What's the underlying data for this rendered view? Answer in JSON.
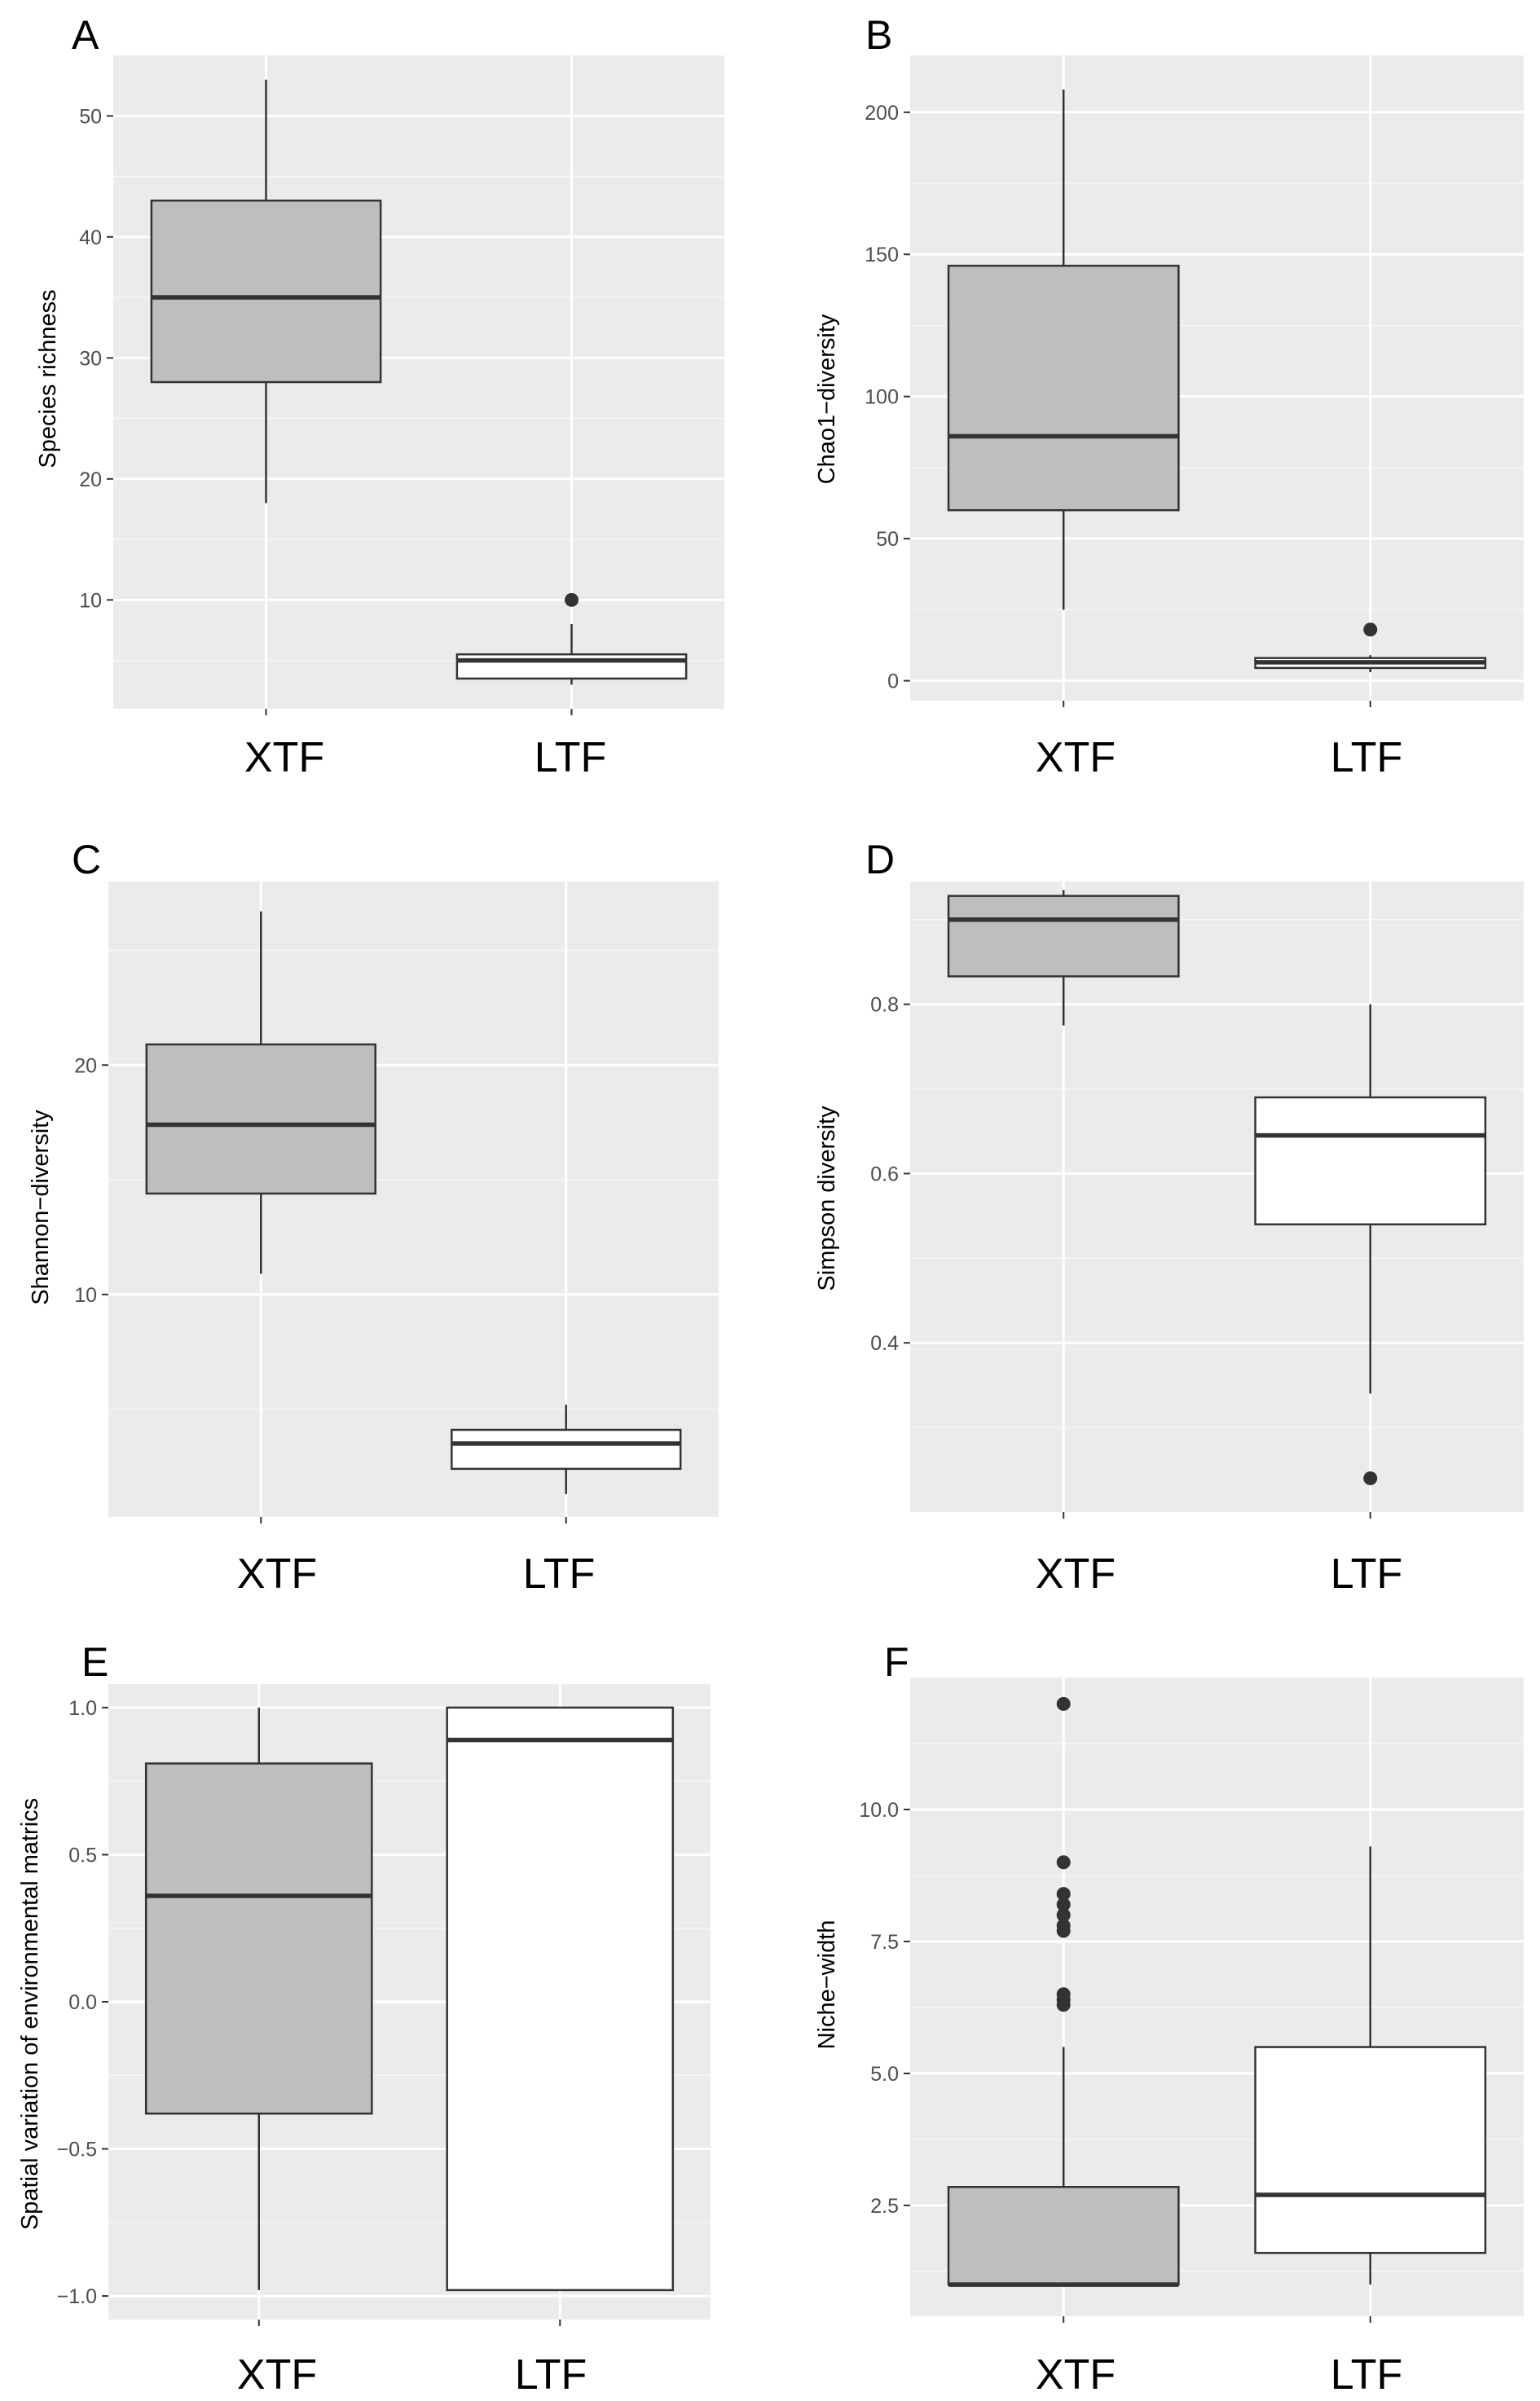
{
  "chart_data": [
    {
      "type": "box",
      "panel": "A",
      "ylabel": "Species richness",
      "significance": "***",
      "categories": [
        "XTF",
        "LTF"
      ],
      "ylim": [
        1,
        55
      ],
      "yticks": [
        10,
        20,
        30,
        40,
        50
      ],
      "ytick_labels": [
        "10",
        "20",
        "30",
        "40",
        "50"
      ],
      "boxes": [
        {
          "category": "XTF",
          "fill": "#bebebe",
          "whisker_low": 18,
          "q1": 28,
          "median": 35,
          "q3": 43,
          "whisker_high": 53,
          "outliers": []
        },
        {
          "category": "LTF",
          "fill": "#ffffff",
          "whisker_low": 3,
          "q1": 3.5,
          "median": 5,
          "q3": 5.5,
          "whisker_high": 8,
          "outliers": [
            10
          ]
        }
      ]
    },
    {
      "type": "box",
      "panel": "B",
      "ylabel": "Chao1−diversity",
      "significance": "***",
      "categories": [
        "XTF",
        "LTF"
      ],
      "ylim": [
        -7,
        220
      ],
      "yticks": [
        0,
        50,
        100,
        150,
        200
      ],
      "ytick_labels": [
        "0",
        "50",
        "100",
        "150",
        "200"
      ],
      "boxes": [
        {
          "category": "XTF",
          "fill": "#bebebe",
          "whisker_low": 25,
          "q1": 60,
          "median": 86,
          "q3": 146,
          "whisker_high": 208,
          "outliers": []
        },
        {
          "category": "LTF",
          "fill": "#ffffff",
          "whisker_low": 3,
          "q1": 4.5,
          "median": 6.5,
          "q3": 8,
          "whisker_high": 9,
          "outliers": [
            18
          ]
        }
      ]
    },
    {
      "type": "box",
      "panel": "C",
      "ylabel": "Shannon−diversity",
      "significance": "***",
      "categories": [
        "XTF",
        "LTF"
      ],
      "ylim": [
        0.3,
        28
      ],
      "yticks": [
        10,
        20
      ],
      "ytick_labels": [
        "10",
        "20"
      ],
      "boxes": [
        {
          "category": "XTF",
          "fill": "#bebebe",
          "whisker_low": 10.9,
          "q1": 14.4,
          "median": 17.4,
          "q3": 20.9,
          "whisker_high": 26.7,
          "outliers": []
        },
        {
          "category": "LTF",
          "fill": "#ffffff",
          "whisker_low": 1.3,
          "q1": 2.4,
          "median": 3.5,
          "q3": 4.1,
          "whisker_high": 5.2,
          "outliers": []
        }
      ]
    },
    {
      "type": "box",
      "panel": "D",
      "ylabel": "Simpson diversity",
      "significance": "***",
      "categories": [
        "XTF",
        "LTF"
      ],
      "ylim": [
        0.2,
        0.945
      ],
      "yticks": [
        0.4,
        0.6,
        0.8
      ],
      "ytick_labels": [
        "0.4",
        "0.6",
        "0.8"
      ],
      "boxes": [
        {
          "category": "XTF",
          "fill": "#bebebe",
          "whisker_low": 0.775,
          "q1": 0.833,
          "median": 0.9,
          "q3": 0.928,
          "whisker_high": 0.935,
          "outliers": []
        },
        {
          "category": "LTF",
          "fill": "#ffffff",
          "whisker_low": 0.34,
          "q1": 0.54,
          "median": 0.645,
          "q3": 0.69,
          "whisker_high": 0.8,
          "outliers": [
            0.24
          ]
        }
      ]
    },
    {
      "type": "box",
      "panel": "E",
      "ylabel": "Spatial variation of environmental matrics",
      "significance": "***",
      "categories": [
        "XTF",
        "LTF"
      ],
      "ylim": [
        -1.08,
        1.08
      ],
      "yticks": [
        -1.0,
        -0.5,
        0.0,
        0.5,
        1.0
      ],
      "ytick_labels": [
        "−1.0",
        "−0.5",
        "0.0",
        "0.5",
        "1.0"
      ],
      "boxes": [
        {
          "category": "XTF",
          "fill": "#bebebe",
          "whisker_low": -0.98,
          "q1": -0.38,
          "median": 0.36,
          "q3": 0.81,
          "whisker_high": 1.0,
          "outliers": []
        },
        {
          "category": "LTF",
          "fill": "#ffffff",
          "whisker_low": -0.98,
          "q1": -0.98,
          "median": 0.89,
          "q3": 1.0,
          "whisker_high": 1.0,
          "outliers": []
        }
      ]
    },
    {
      "type": "box",
      "panel": "F",
      "ylabel": "Niche−width",
      "significance": "***",
      "categories": [
        "XTF",
        "LTF"
      ],
      "ylim": [
        0.4,
        12.5
      ],
      "yticks": [
        2.5,
        5.0,
        7.5,
        10.0
      ],
      "ytick_labels": [
        "2.5",
        "5.0",
        "7.5",
        "10.0"
      ],
      "boxes": [
        {
          "category": "XTF",
          "fill": "#bebebe",
          "whisker_low": 1.0,
          "q1": 1.0,
          "median": 1.0,
          "q3": 2.85,
          "whisker_high": 5.5,
          "outliers": [
            6.3,
            6.4,
            6.5,
            7.7,
            7.8,
            8.0,
            8.2,
            8.4,
            9.0,
            12.0
          ]
        },
        {
          "category": "LTF",
          "fill": "#ffffff",
          "whisker_low": 1.0,
          "q1": 1.6,
          "median": 2.7,
          "q3": 5.5,
          "whisker_high": 9.3,
          "outliers": []
        }
      ]
    }
  ]
}
